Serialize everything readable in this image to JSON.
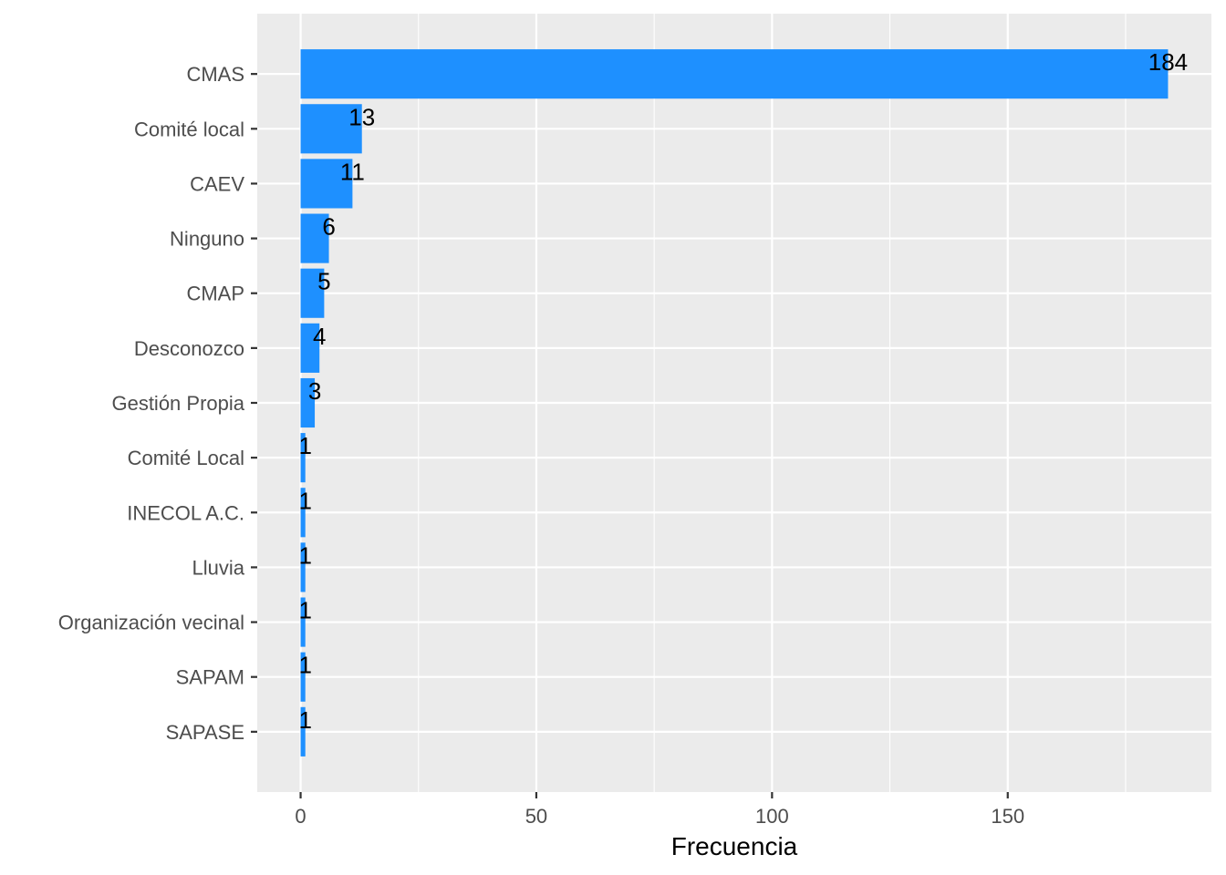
{
  "chart_data": {
    "type": "bar",
    "orientation": "horizontal",
    "categories": [
      "CMAS",
      "Comité local",
      "CAEV",
      "Ninguno",
      "CMAP",
      "Desconozco",
      "Gestión Propia",
      "Comité Local",
      "INECOL A.C.",
      "Lluvia",
      "Organización vecinal",
      "SAPAM",
      "SAPASE"
    ],
    "values": [
      184,
      13,
      11,
      6,
      5,
      4,
      3,
      1,
      1,
      1,
      1,
      1,
      1
    ],
    "data_labels": [
      "184",
      "13",
      "11",
      "6",
      "5",
      "4",
      "3",
      "1",
      "1",
      "1",
      "1",
      "1",
      "1"
    ],
    "xlabel": "Frecuencia",
    "ylabel": "",
    "xlim": [
      -9.2,
      193.2
    ],
    "x_ticks": [
      0,
      50,
      100,
      150
    ],
    "x_tick_labels": [
      "0",
      "50",
      "100",
      "150"
    ],
    "x_minor_ticks": [
      25,
      75,
      125,
      175
    ],
    "grid": true,
    "legend": "none",
    "colors": {
      "bar": "#1E90FF",
      "panel_background": "#EBEBEB",
      "grid": "#FFFFFF",
      "tick_label": "#4D4D4D",
      "tick_mark": "#333333",
      "text": "#000000"
    }
  }
}
